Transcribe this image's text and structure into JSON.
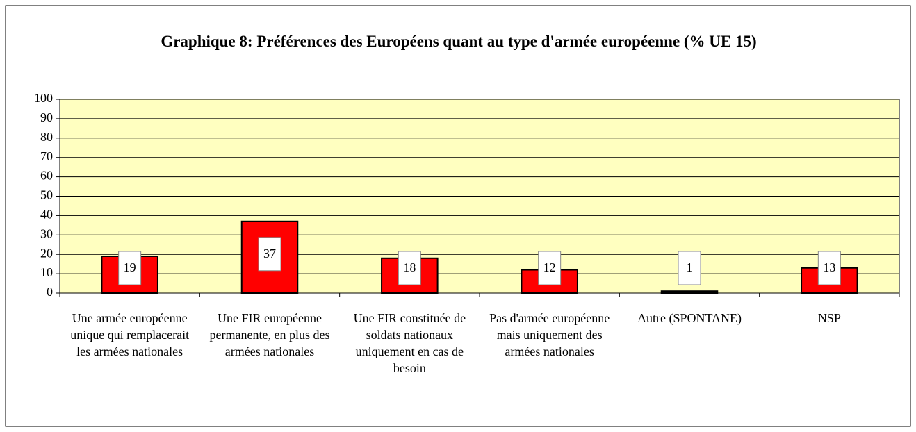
{
  "chart_data": {
    "type": "bar",
    "title": "Graphique 8: Préférences des Européens quant au type d'armée européenne (% UE 15)",
    "categories": [
      "Une armée européenne unique qui remplacerait les armées nationales",
      "Une FIR européenne permanente, en plus des armées nationales",
      "Une FIR constituée de soldats nationaux uniquement en cas de besoin",
      "Pas d'armée européenne mais uniquement des armées nationales",
      "Autre (SPONTANE)",
      "NSP"
    ],
    "values": [
      19,
      37,
      18,
      12,
      1,
      13
    ],
    "color": "#ff0000",
    "ylim": [
      0,
      100
    ],
    "yticks": [
      0,
      10,
      20,
      30,
      40,
      50,
      60,
      70,
      80,
      90,
      100
    ],
    "grid": true
  }
}
